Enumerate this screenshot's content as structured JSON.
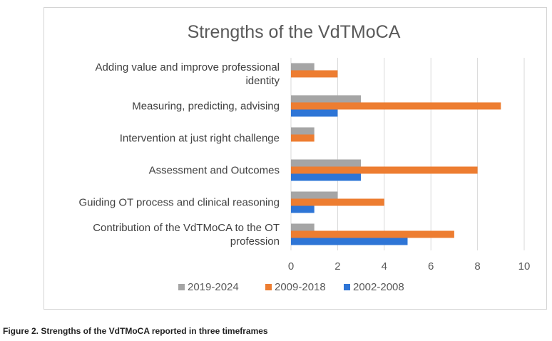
{
  "caption": "Figure 2. Strengths of the VdTMoCA reported in three timeframes",
  "chart_data": {
    "type": "bar",
    "orientation": "horizontal",
    "title": "Strengths of the VdTMoCA",
    "categories": [
      [
        "Adding value and improve professional",
        "identity"
      ],
      [
        "Measuring, predicting, advising"
      ],
      [
        "Intervention at just right challenge"
      ],
      [
        "Assessment and Outcomes"
      ],
      [
        "Guiding OT process and clinical reasoning"
      ],
      [
        "Contribution of the VdTMoCA to the OT",
        "profession"
      ]
    ],
    "series": [
      {
        "name": "2019-2024",
        "color": "#a5a5a5",
        "values": [
          1,
          3,
          1,
          3,
          2,
          1
        ]
      },
      {
        "name": "2009-2018",
        "color": "#ed7d31",
        "values": [
          2,
          9,
          1,
          8,
          4,
          7
        ]
      },
      {
        "name": "2002-2008",
        "color": "#2e75d6",
        "values": [
          0,
          2,
          0,
          3,
          1,
          5
        ]
      }
    ],
    "xlim": [
      0,
      10
    ],
    "xticks": [
      0,
      2,
      4,
      6,
      8,
      10
    ],
    "gridlines": true,
    "legend_position": "bottom"
  }
}
